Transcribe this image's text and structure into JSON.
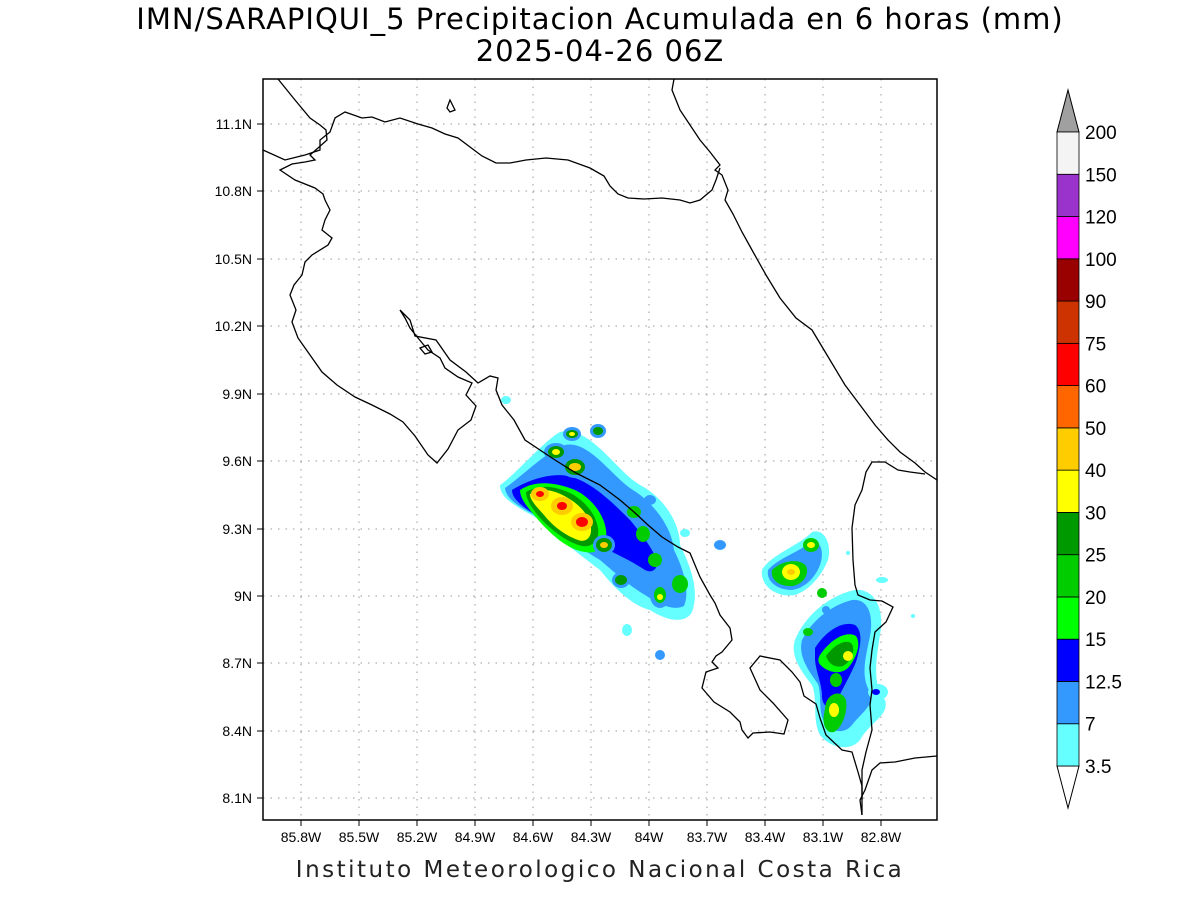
{
  "title": "IMN/SARAPIQUI_5 Precipitacion Acumulada en 6 horas (mm)",
  "subtitle": "2025-04-26 06Z",
  "footer": "Instituto Meteorologico Nacional Costa Rica",
  "map": {
    "lon_range": [
      -86.0,
      -82.5
    ],
    "lat_range": [
      8.0,
      11.3
    ],
    "lat_ticks": [
      "11.1N",
      "10.8N",
      "10.5N",
      "10.2N",
      "9.9N",
      "9.6N",
      "9.3N",
      "9N",
      "8.7N",
      "8.4N",
      "8.1N"
    ],
    "lon_ticks": [
      "85.8W",
      "85.5W",
      "85.2W",
      "84.9W",
      "84.6W",
      "84.3W",
      "84W",
      "83.7W",
      "83.4W",
      "83.1W",
      "82.8W"
    ],
    "grid": true
  },
  "colorbar": {
    "levels": [
      "3.5",
      "7",
      "12.5",
      "15",
      "20",
      "25",
      "30",
      "40",
      "50",
      "60",
      "75",
      "90",
      "100",
      "120",
      "150",
      "200"
    ],
    "colors": [
      "#66ffff",
      "#3399ff",
      "#0000ff",
      "#00ff00",
      "#00cc00",
      "#009900",
      "#ffff00",
      "#ffcc00",
      "#ff6600",
      "#ff0000",
      "#cc3300",
      "#990000",
      "#ff00ff",
      "#9933cc",
      "#f4f4f4"
    ],
    "over_color": "#a0a0a0",
    "under_color": "#ffffff"
  }
}
